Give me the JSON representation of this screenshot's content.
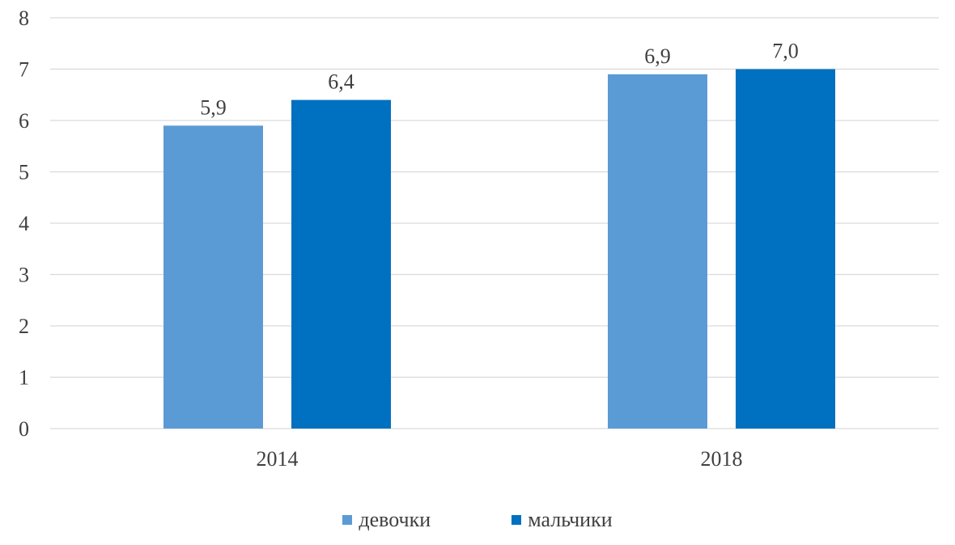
{
  "chart_data": {
    "type": "bar",
    "title": "",
    "xlabel": "",
    "ylabel": "",
    "categories": [
      "2014",
      "2018"
    ],
    "series": [
      {
        "name": "девочки",
        "values": [
          5.9,
          6.9
        ],
        "labels": [
          "5,9",
          "6,9"
        ],
        "color": "#5B9BD5"
      },
      {
        "name": "мальчики",
        "values": [
          6.4,
          7.0
        ],
        "labels": [
          "6,4",
          "7,0"
        ],
        "color": "#0070C0"
      }
    ],
    "ylim": [
      0,
      8
    ],
    "yticks": [
      "0",
      "1",
      "2",
      "3",
      "4",
      "5",
      "6",
      "7",
      "8"
    ],
    "grid": true,
    "legend": "bottom-center"
  }
}
